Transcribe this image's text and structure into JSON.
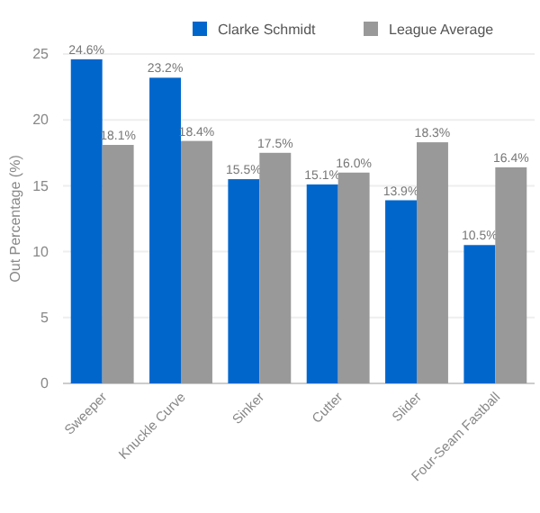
{
  "chart_data": {
    "type": "bar",
    "ylabel": "Out Percentage (%)",
    "categories": [
      "Sweeper",
      "Knuckle Curve",
      "Sinker",
      "Cutter",
      "Slider",
      "Four-Seam Fastball"
    ],
    "series": [
      {
        "name": "Clarke Schmidt",
        "color": "#0066cc",
        "values": [
          24.6,
          23.2,
          15.5,
          15.1,
          13.9,
          10.5
        ],
        "value_labels": [
          "24.6%",
          "23.2%",
          "15.5%",
          "15.1%",
          "13.9%",
          "10.5%"
        ]
      },
      {
        "name": "League Average",
        "color": "#999999",
        "values": [
          18.1,
          18.4,
          17.5,
          16.0,
          18.3,
          16.4
        ],
        "value_labels": [
          "18.1%",
          "18.4%",
          "17.5%",
          "16.0%",
          "18.3%",
          "16.4%"
        ]
      }
    ],
    "ylim": [
      0,
      25
    ],
    "yticks": [
      0,
      5,
      10,
      15,
      20,
      25
    ],
    "grid": "y",
    "legend": "top right"
  }
}
